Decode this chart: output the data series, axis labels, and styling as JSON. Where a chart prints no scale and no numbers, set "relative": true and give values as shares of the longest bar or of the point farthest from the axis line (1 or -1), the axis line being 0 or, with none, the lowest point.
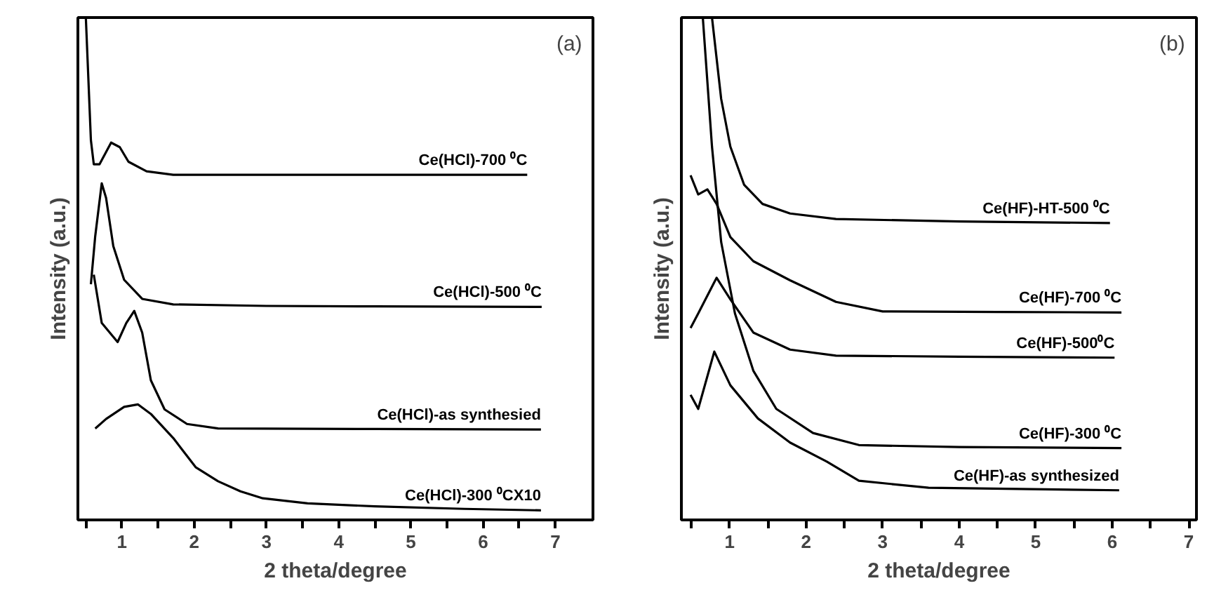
{
  "chart_data": [
    {
      "type": "line",
      "relative": true,
      "xlabel": "2 theta/degree",
      "ylabel": "Intensity (a.u.)",
      "xlim": [
        0.39,
        7.52
      ],
      "xticks": [
        {
          "value": 0.5,
          "label": null
        },
        1,
        {
          "value": 1.5,
          "label": null
        },
        2,
        {
          "value": 2.5,
          "label": null
        },
        3,
        {
          "value": 3.5,
          "label": null
        },
        4,
        {
          "value": 4.5,
          "label": null
        },
        5,
        {
          "value": 5.5,
          "label": null
        },
        6,
        {
          "value": 6.5,
          "label": null
        },
        7
      ],
      "grid": false,
      "line_style": "solid",
      "tick_labels": "x",
      "annotations": [
        "(a)"
      ],
      "series": [
        {
          "name": "Ce(HCl)-700 ⁰C",
          "color": "#000000",
          "x": [
            0.5,
            0.57,
            0.61,
            0.69,
            0.85,
            0.97,
            1.09,
            1.34,
            1.71,
            3.0,
            4.5,
            6.61
          ],
          "values": [
            1.0,
            0.756,
            0.708,
            0.708,
            0.751,
            0.742,
            0.713,
            0.694,
            0.687,
            0.687,
            0.687,
            0.687
          ]
        },
        {
          "name": "Ce(HCl)-500 ⁰C",
          "color": "#000000",
          "x": [
            0.57,
            0.63,
            0.72,
            0.78,
            0.88,
            1.03,
            1.28,
            1.71,
            3.0,
            4.5,
            6.81
          ],
          "values": [
            0.469,
            0.565,
            0.67,
            0.641,
            0.545,
            0.478,
            0.44,
            0.429,
            0.426,
            0.425,
            0.424
          ]
        },
        {
          "name": "Ce(HCl)-as synthesied",
          "color": "#000000",
          "x": [
            0.61,
            0.72,
            0.94,
            1.06,
            1.17,
            1.28,
            1.4,
            1.59,
            1.9,
            2.33,
            4.5,
            6.8
          ],
          "values": [
            0.488,
            0.392,
            0.354,
            0.392,
            0.416,
            0.373,
            0.278,
            0.22,
            0.191,
            0.182,
            0.181,
            0.18
          ]
        },
        {
          "name": "Ce(HCl)-300 ⁰CX10",
          "color": "#000000",
          "x": [
            0.63,
            0.78,
            1.03,
            1.22,
            1.4,
            1.71,
            2.02,
            2.33,
            2.64,
            2.95,
            3.57,
            4.5,
            5.74,
            6.8
          ],
          "values": [
            0.182,
            0.201,
            0.225,
            0.23,
            0.211,
            0.163,
            0.105,
            0.077,
            0.057,
            0.043,
            0.033,
            0.027,
            0.022,
            0.019
          ]
        }
      ]
    },
    {
      "type": "line",
      "relative": true,
      "xlabel": "2 theta/degree",
      "ylabel": "Intensity (a.u.)",
      "xlim": [
        0.37,
        7.1
      ],
      "xticks": [
        {
          "value": 0.5,
          "label": null
        },
        1,
        {
          "value": 1.5,
          "label": null
        },
        2,
        {
          "value": 2.5,
          "label": null
        },
        3,
        {
          "value": 3.5,
          "label": null
        },
        4,
        {
          "value": 4.5,
          "label": null
        },
        5,
        {
          "value": 5.5,
          "label": null
        },
        6,
        {
          "value": 6.5,
          "label": null
        },
        7
      ],
      "grid": false,
      "line_style": "solid",
      "tick_labels": "x",
      "annotations": [
        "(b)"
      ],
      "series": [
        {
          "name": "Ce(HF)-HT-500 ⁰C",
          "color": "#000000",
          "x": [
            0.77,
            0.89,
            1.01,
            1.19,
            1.43,
            1.79,
            2.39,
            4.0,
            5.97
          ],
          "values": [
            1.0,
            0.838,
            0.743,
            0.667,
            0.629,
            0.61,
            0.599,
            0.594,
            0.591
          ]
        },
        {
          "name": "Ce(HF)-700 ⁰C",
          "color": "#000000",
          "x": [
            0.49,
            0.59,
            0.71,
            0.83,
            1.01,
            1.31,
            1.79,
            2.39,
            3.0,
            4.5,
            6.12
          ],
          "values": [
            0.686,
            0.648,
            0.658,
            0.629,
            0.563,
            0.515,
            0.477,
            0.434,
            0.415,
            0.414,
            0.413
          ]
        },
        {
          "name": "Ce(HF)-500⁰C",
          "color": "#000000",
          "x": [
            0.49,
            0.59,
            0.83,
            1.01,
            1.31,
            1.79,
            2.39,
            4.0,
            6.03
          ],
          "values": [
            0.382,
            0.411,
            0.482,
            0.439,
            0.373,
            0.339,
            0.327,
            0.325,
            0.323
          ]
        },
        {
          "name": "Ce(HF)-300 ⁰C",
          "color": "#000000",
          "x": [
            0.65,
            0.77,
            0.89,
            1.07,
            1.31,
            1.61,
            2.09,
            2.69,
            4.0,
            6.12
          ],
          "values": [
            1.0,
            0.743,
            0.553,
            0.411,
            0.297,
            0.221,
            0.173,
            0.149,
            0.145,
            0.143
          ]
        },
        {
          "name": "Ce(HF)-as synthesized",
          "color": "#000000",
          "x": [
            0.49,
            0.59,
            0.8,
            1.01,
            1.37,
            1.79,
            2.27,
            2.69,
            3.6,
            6.09
          ],
          "values": [
            0.249,
            0.221,
            0.335,
            0.268,
            0.202,
            0.154,
            0.116,
            0.078,
            0.064,
            0.059
          ]
        }
      ]
    }
  ]
}
